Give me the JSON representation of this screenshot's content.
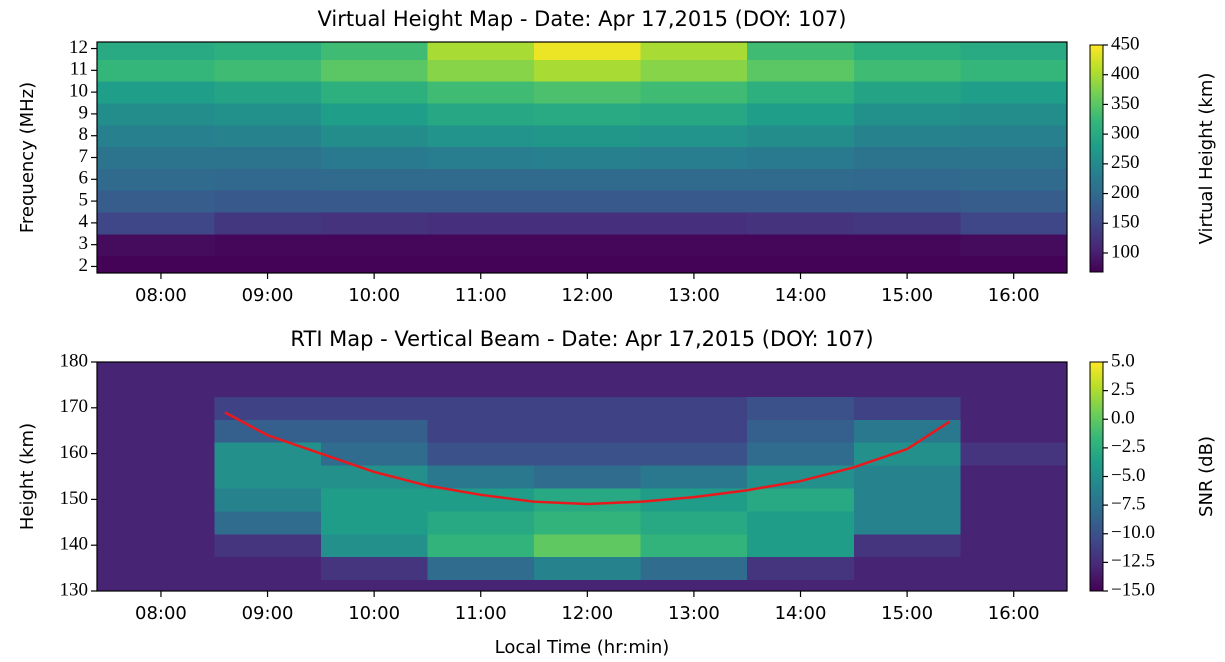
{
  "chart_data": [
    {
      "type": "heatmap",
      "title": "Virtual Height Map - Date: Apr 17,2015 (DOY: 107)",
      "ylabel": "Frequency (MHz)",
      "colorbar_label": "Virtual Height (km)",
      "x": [
        8,
        9,
        10,
        11,
        12,
        13,
        14,
        15,
        16
      ],
      "y": [
        2,
        3,
        4,
        5,
        6,
        7,
        8,
        9,
        10,
        11,
        12
      ],
      "z": [
        [
          70,
          70,
          70,
          70,
          70,
          70,
          70,
          70,
          70
        ],
        [
          80,
          75,
          75,
          75,
          75,
          75,
          75,
          75,
          80
        ],
        [
          150,
          130,
          125,
          120,
          120,
          120,
          125,
          130,
          150
        ],
        [
          180,
          175,
          175,
          175,
          175,
          175,
          175,
          175,
          180
        ],
        [
          200,
          195,
          200,
          200,
          200,
          200,
          200,
          195,
          200
        ],
        [
          215,
          215,
          225,
          230,
          235,
          230,
          225,
          215,
          215
        ],
        [
          235,
          240,
          255,
          265,
          270,
          265,
          255,
          240,
          235
        ],
        [
          255,
          260,
          280,
          295,
          300,
          295,
          280,
          260,
          255
        ],
        [
          280,
          290,
          310,
          330,
          340,
          330,
          310,
          290,
          280
        ],
        [
          320,
          330,
          350,
          380,
          400,
          380,
          350,
          330,
          320
        ],
        [
          300,
          310,
          330,
          400,
          440,
          400,
          330,
          310,
          300
        ]
      ],
      "xlim": [
        7.4,
        16.5
      ],
      "xticks": [
        {
          "value": 8,
          "label": "08:00"
        },
        {
          "value": 9,
          "label": "09:00"
        },
        {
          "value": 10,
          "label": "10:00"
        },
        {
          "value": 11,
          "label": "11:00"
        },
        {
          "value": 12,
          "label": "12:00"
        },
        {
          "value": 13,
          "label": "13:00"
        },
        {
          "value": 14,
          "label": "14:00"
        },
        {
          "value": 15,
          "label": "15:00"
        },
        {
          "value": 16,
          "label": "16:00"
        }
      ],
      "ylim": [
        1.7,
        12.3
      ],
      "yticks": [
        2,
        3,
        4,
        5,
        6,
        7,
        8,
        9,
        10,
        11,
        12
      ],
      "clim": [
        68,
        450
      ],
      "cticks": [
        100,
        150,
        200,
        250,
        300,
        350,
        400,
        450
      ],
      "colormap": "viridis"
    },
    {
      "type": "heatmap",
      "title": "RTI Map - Vertical Beam - Date: Apr 17,2015 (DOY: 107)",
      "xlabel": "Local Time (hr:min)",
      "ylabel": "Height (km)",
      "colorbar_label": "SNR (dB)",
      "x": [
        8,
        9,
        10,
        11,
        12,
        13,
        14,
        15,
        16
      ],
      "y": [
        130,
        135,
        140,
        145,
        150,
        155,
        160,
        165,
        170,
        175,
        180
      ],
      "z": [
        [
          -13,
          -13,
          -13,
          -13,
          -13,
          -13,
          -13,
          -13,
          -13
        ],
        [
          -13,
          -13,
          -12,
          -8,
          -6,
          -8,
          -12,
          -13,
          -13
        ],
        [
          -13,
          -12,
          -5,
          -2,
          0,
          -2,
          -4,
          -12,
          -13
        ],
        [
          -13,
          -8,
          -4,
          -3,
          -2,
          -3,
          -4,
          -6,
          -13
        ],
        [
          -13,
          -6,
          -4,
          -4,
          -3,
          -4,
          -3,
          -6,
          -13
        ],
        [
          -13,
          -5,
          -5,
          -7,
          -8,
          -7,
          -5,
          -6,
          -13
        ],
        [
          -13,
          -5,
          -8,
          -10,
          -10,
          -10,
          -8,
          -5,
          -12
        ],
        [
          -13,
          -9,
          -9,
          -11,
          -11,
          -11,
          -9,
          -7,
          -13
        ],
        [
          -13,
          -11,
          -11,
          -11,
          -11,
          -11,
          -10,
          -11,
          -13
        ],
        [
          -13,
          -13,
          -13,
          -13,
          -13,
          -13,
          -13,
          -13,
          -13
        ],
        [
          -13,
          -13,
          -13,
          -13,
          -13,
          -13,
          -13,
          -13,
          -13
        ]
      ],
      "series": [
        {
          "color": "#e8191c",
          "x": [
            8.6,
            9,
            9.5,
            10,
            10.5,
            11,
            11.5,
            12,
            12.5,
            13,
            13.5,
            14,
            14.5,
            15,
            15.4
          ],
          "values": [
            169,
            164,
            160,
            156,
            153,
            151,
            149.5,
            149,
            149.5,
            150.5,
            152,
            154,
            157,
            161,
            167
          ]
        }
      ],
      "xlim": [
        7.4,
        16.5
      ],
      "xticks": [
        {
          "value": 8,
          "label": "08:00"
        },
        {
          "value": 9,
          "label": "09:00"
        },
        {
          "value": 10,
          "label": "10:00"
        },
        {
          "value": 11,
          "label": "11:00"
        },
        {
          "value": 12,
          "label": "12:00"
        },
        {
          "value": 13,
          "label": "13:00"
        },
        {
          "value": 14,
          "label": "14:00"
        },
        {
          "value": 15,
          "label": "15:00"
        },
        {
          "value": 16,
          "label": "16:00"
        }
      ],
      "ylim": [
        130,
        180
      ],
      "yticks": [
        130,
        140,
        150,
        160,
        170,
        180
      ],
      "clim": [
        -15,
        5
      ],
      "cticks": [
        {
          "value": 5,
          "label": "5.0"
        },
        {
          "value": 2.5,
          "label": "2.5"
        },
        {
          "value": 0,
          "label": "0.0"
        },
        {
          "value": -2.5,
          "label": "−2.5"
        },
        {
          "value": -5,
          "label": "−5.0"
        },
        {
          "value": -7.5,
          "label": "−7.5"
        },
        {
          "value": -10,
          "label": "−10.0"
        },
        {
          "value": -12.5,
          "label": "−12.5"
        },
        {
          "value": -15,
          "label": "−15.0"
        }
      ],
      "colormap": "viridis"
    }
  ]
}
